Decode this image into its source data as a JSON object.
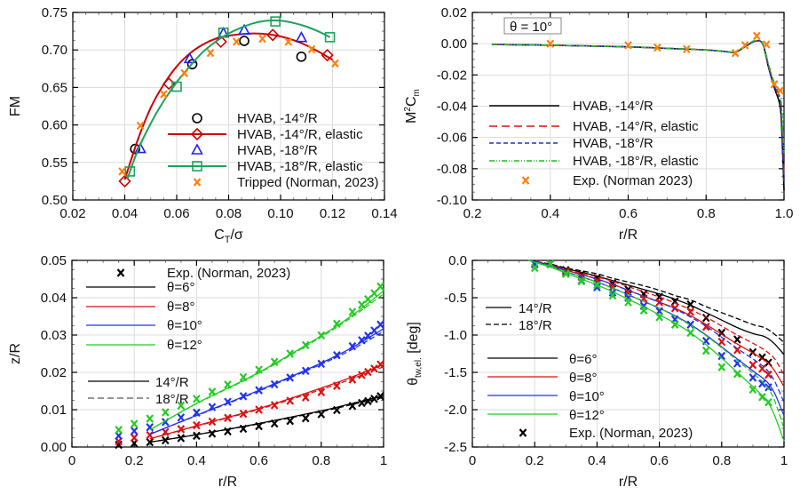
{
  "chart_data": [
    {
      "id": "fm",
      "type": "scatter",
      "xlabel": "C_T/σ",
      "ylabel": "FM",
      "xlim": [
        0.02,
        0.14
      ],
      "ylim": [
        0.5,
        0.75
      ],
      "xticks": [
        "0.02",
        "0.04",
        "0.06",
        "0.08",
        "0.10",
        "0.12",
        "0.14"
      ],
      "xtick_values": [
        0.02,
        0.04,
        0.06,
        0.08,
        0.1,
        0.12,
        0.14
      ],
      "yticks": [
        "0.50",
        "0.55",
        "0.60",
        "0.65",
        "0.70",
        "0.75"
      ],
      "ytick_values": [
        0.5,
        0.55,
        0.6,
        0.65,
        0.7,
        0.75
      ],
      "grid": true,
      "legend_position": "lower-right",
      "series": [
        {
          "name": "HVAB, -14°/R",
          "marker": "circle",
          "color": "#000000",
          "line": false,
          "x": [
            0.044,
            0.066,
            0.086,
            0.108
          ],
          "y": [
            0.568,
            0.681,
            0.712,
            0.691
          ]
        },
        {
          "name": "HVAB, -14°/R, elastic",
          "marker": "diamond",
          "color": "#cc0000",
          "line": true,
          "x": [
            0.04,
            0.057,
            0.077,
            0.097,
            0.118
          ],
          "y": [
            0.525,
            0.655,
            0.711,
            0.72,
            0.693
          ],
          "fit_x": [
            0.04,
            0.045,
            0.05,
            0.055,
            0.06,
            0.065,
            0.07,
            0.075,
            0.08,
            0.085,
            0.09,
            0.095,
            0.1,
            0.105,
            0.11,
            0.115,
            0.12
          ],
          "fit_y": [
            0.527,
            0.58,
            0.623,
            0.654,
            0.678,
            0.695,
            0.707,
            0.715,
            0.719,
            0.721,
            0.722,
            0.721,
            0.718,
            0.713,
            0.706,
            0.697,
            0.687
          ]
        },
        {
          "name": "HVAB, -18°/R",
          "marker": "triangle",
          "color": "#1f1fff",
          "line": false,
          "x": [
            0.046,
            0.065,
            0.078,
            0.086,
            0.108
          ],
          "y": [
            0.568,
            0.688,
            0.722,
            0.726,
            0.716
          ]
        },
        {
          "name": "HVAB, -18°/R, elastic",
          "marker": "square",
          "color": "#1aa35a",
          "line": true,
          "x": [
            0.042,
            0.06,
            0.078,
            0.098,
            0.119
          ],
          "y": [
            0.538,
            0.651,
            0.723,
            0.738,
            0.717
          ],
          "fit_x": [
            0.041,
            0.045,
            0.05,
            0.055,
            0.06,
            0.065,
            0.07,
            0.075,
            0.08,
            0.085,
            0.09,
            0.095,
            0.1,
            0.105,
            0.11,
            0.115,
            0.119
          ],
          "fit_y": [
            0.528,
            0.566,
            0.602,
            0.632,
            0.657,
            0.678,
            0.697,
            0.711,
            0.722,
            0.73,
            0.736,
            0.739,
            0.739,
            0.736,
            0.731,
            0.724,
            0.717
          ]
        },
        {
          "name": "Tripped (Norman, 2023)",
          "marker": "x",
          "color": "#ff7f0e",
          "line": false,
          "x": [
            0.039,
            0.046,
            0.055,
            0.063,
            0.073,
            0.083,
            0.093,
            0.103,
            0.112,
            0.121
          ],
          "y": [
            0.538,
            0.599,
            0.641,
            0.669,
            0.696,
            0.711,
            0.715,
            0.711,
            0.701,
            0.682
          ]
        }
      ]
    },
    {
      "id": "cm",
      "type": "line",
      "xlabel": "r/R",
      "ylabel": "M²C_m",
      "xlim": [
        0.2,
        1.0
      ],
      "ylim": [
        -0.1,
        0.02
      ],
      "xticks": [
        "0.2",
        "0.4",
        "0.6",
        "0.8",
        "1.0"
      ],
      "xtick_values": [
        0.2,
        0.4,
        0.6,
        0.8,
        1.0
      ],
      "yticks": [
        "-0.10",
        "-0.08",
        "-0.06",
        "-0.04",
        "-0.02",
        "0.00",
        "0.02"
      ],
      "ytick_values": [
        -0.1,
        -0.08,
        -0.06,
        -0.04,
        -0.02,
        0.0,
        0.02
      ],
      "grid": true,
      "annotation": "θ = 10°",
      "legend_position": "lower-center",
      "series": [
        {
          "name": "HVAB, -14°/R",
          "color": "#000000",
          "dash": "solid",
          "x": [
            0.25,
            0.4,
            0.6,
            0.7,
            0.8,
            0.85,
            0.875,
            0.9,
            0.925,
            0.945,
            0.96,
            0.975,
            0.99,
            0.995,
            1.0
          ],
          "y": [
            -0.0005,
            -0.001,
            -0.002,
            -0.003,
            -0.004,
            -0.005,
            -0.0055,
            -0.002,
            0.0015,
            0.0,
            -0.015,
            -0.028,
            -0.04,
            -0.06,
            -0.094
          ]
        },
        {
          "name": "HVAB, -14°/R, elastic",
          "color": "#dd1111",
          "dash": "long-dash",
          "x": [
            0.25,
            0.4,
            0.6,
            0.7,
            0.8,
            0.85,
            0.875,
            0.9,
            0.925,
            0.945,
            0.96,
            0.975,
            0.99,
            0.995,
            1.0
          ],
          "y": [
            -0.0005,
            -0.001,
            -0.002,
            -0.003,
            -0.004,
            -0.005,
            -0.0055,
            -0.002,
            0.0015,
            0.0,
            -0.014,
            -0.027,
            -0.036,
            -0.055,
            -0.085
          ]
        },
        {
          "name": "HVAB, -18°/R",
          "color": "#2233cc",
          "dash": "short-dash",
          "x": [
            0.25,
            0.4,
            0.6,
            0.7,
            0.8,
            0.85,
            0.875,
            0.9,
            0.925,
            0.945,
            0.96,
            0.975,
            0.99,
            0.995,
            1.0
          ],
          "y": [
            -0.0005,
            -0.001,
            -0.002,
            -0.003,
            -0.004,
            -0.005,
            -0.0055,
            -0.002,
            0.0015,
            0.0,
            -0.014,
            -0.027,
            -0.036,
            -0.055,
            -0.088
          ]
        },
        {
          "name": "HVAB, -18°/R, elastic",
          "color": "#22bb22",
          "dash": "dash-dot-dot",
          "x": [
            0.25,
            0.4,
            0.6,
            0.7,
            0.8,
            0.85,
            0.875,
            0.9,
            0.925,
            0.945,
            0.96,
            0.975,
            0.99,
            0.995,
            1.0
          ],
          "y": [
            -0.0005,
            -0.001,
            -0.002,
            -0.003,
            -0.004,
            -0.005,
            -0.005,
            -0.0015,
            0.002,
            0.0005,
            -0.013,
            -0.025,
            -0.034,
            -0.045,
            -0.07
          ]
        },
        {
          "name": "Exp. (Norman 2023)",
          "color": "#ff7f0e",
          "marker": "x",
          "x": [
            0.4,
            0.6,
            0.675,
            0.75,
            0.875,
            0.9,
            0.93,
            0.955,
            0.975,
            0.99
          ],
          "y": [
            0.0,
            -0.001,
            -0.0025,
            -0.0035,
            -0.006,
            -0.001,
            0.005,
            -0.0005,
            -0.026,
            -0.03
          ]
        }
      ]
    },
    {
      "id": "z",
      "type": "line",
      "xlabel": "r/R",
      "ylabel": "z/R",
      "xlim": [
        0,
        1
      ],
      "ylim": [
        0.0,
        0.05
      ],
      "xticks": [
        "0",
        "0.2",
        "0.4",
        "0.6",
        "0.8",
        "1"
      ],
      "xtick_values": [
        0,
        0.2,
        0.4,
        0.6,
        0.8,
        1
      ],
      "yticks": [
        "0.00",
        "0.01",
        "0.02",
        "0.03",
        "0.04",
        "0.05"
      ],
      "ytick_values": [
        0,
        0.01,
        0.02,
        0.03,
        0.04,
        0.05
      ],
      "grid": true,
      "legend_entries": [
        "Exp. (Norman, 2023)",
        "θ=6°",
        "θ=8°",
        "θ=10°",
        "θ=12°",
        "14°/R",
        "18°/R"
      ],
      "exp_x": [
        0.15,
        0.2,
        0.25,
        0.3,
        0.35,
        0.4,
        0.45,
        0.5,
        0.55,
        0.6,
        0.65,
        0.7,
        0.75,
        0.8,
        0.85,
        0.9,
        0.93,
        0.95,
        0.97,
        0.99
      ],
      "series": [
        {
          "name": "θ=6°",
          "color": "#000000",
          "x14": [
            0.25,
            0.4,
            0.6,
            0.8,
            0.9,
            1.0
          ],
          "y14": [
            0.0013,
            0.0033,
            0.0063,
            0.0097,
            0.0117,
            0.0137
          ],
          "y18": [
            0.0013,
            0.0033,
            0.0062,
            0.0095,
            0.0114,
            0.0133
          ],
          "exp_y": [
            0.0006,
            0.001,
            0.0013,
            0.0018,
            0.0024,
            0.003,
            0.0036,
            0.0042,
            0.0049,
            0.0056,
            0.0063,
            0.007,
            0.0077,
            0.0088,
            0.0099,
            0.011,
            0.0118,
            0.0123,
            0.0129,
            0.0136
          ]
        },
        {
          "name": "θ=8°",
          "color": "#dd1111",
          "x14": [
            0.25,
            0.4,
            0.6,
            0.8,
            0.9,
            1.0
          ],
          "y14": [
            0.0022,
            0.0057,
            0.0103,
            0.0158,
            0.0188,
            0.0221
          ],
          "y18": [
            0.0022,
            0.0056,
            0.0101,
            0.0154,
            0.0183,
            0.0215
          ],
          "exp_y": [
            0.0015,
            0.0025,
            0.0032,
            0.004,
            0.0048,
            0.0058,
            0.0068,
            0.0078,
            0.0089,
            0.01,
            0.0112,
            0.0124,
            0.0133,
            0.0147,
            0.0164,
            0.0181,
            0.0193,
            0.0201,
            0.021,
            0.0221
          ]
        },
        {
          "name": "θ=10°",
          "color": "#2233ee",
          "x14": [
            0.25,
            0.4,
            0.6,
            0.8,
            0.9,
            1.0
          ],
          "y14": [
            0.0034,
            0.0085,
            0.0152,
            0.0225,
            0.0267,
            0.0317
          ],
          "y18": [
            0.0034,
            0.0084,
            0.015,
            0.0222,
            0.0262,
            0.031
          ],
          "exp_y": [
            0.003,
            0.0043,
            0.0053,
            0.0067,
            0.0079,
            0.0092,
            0.0107,
            0.0121,
            0.0136,
            0.0152,
            0.0168,
            0.0186,
            0.0204,
            0.0223,
            0.0246,
            0.027,
            0.0286,
            0.0298,
            0.0312,
            0.0328
          ]
        },
        {
          "name": "θ=12°",
          "color": "#22cc22",
          "x14": [
            0.25,
            0.4,
            0.6,
            0.8,
            0.9,
            1.0
          ],
          "y14": [
            0.0046,
            0.0117,
            0.02,
            0.0298,
            0.0353,
            0.0418
          ],
          "y18": [
            0.0046,
            0.0116,
            0.0198,
            0.0295,
            0.0349,
            0.041
          ],
          "exp_y": [
            0.0046,
            0.0062,
            0.0076,
            0.0093,
            0.0111,
            0.0129,
            0.0148,
            0.0167,
            0.0187,
            0.0207,
            0.0228,
            0.025,
            0.0273,
            0.0299,
            0.033,
            0.0362,
            0.0381,
            0.0396,
            0.0412,
            0.043
          ]
        }
      ]
    },
    {
      "id": "theta",
      "type": "line",
      "xlabel": "r/R",
      "ylabel": "θ_tw,el. [deg]",
      "xlim": [
        0,
        1
      ],
      "ylim": [
        -2.5,
        0.0
      ],
      "xticks": [
        "0",
        "0.2",
        "0.4",
        "0.6",
        "0.8",
        "1"
      ],
      "xtick_values": [
        0,
        0.2,
        0.4,
        0.6,
        0.8,
        1
      ],
      "yticks": [
        "-2.5",
        "-2.0",
        "-1.5",
        "-1.0",
        "-0.5",
        "0.0"
      ],
      "ytick_values": [
        -2.5,
        -2.0,
        -1.5,
        -1.0,
        -0.5,
        0.0
      ],
      "grid": true,
      "legend_entries": [
        "14°/R",
        "18°/R",
        "θ=6°",
        "θ=8°",
        "θ=10°",
        "θ=12°",
        "Exp. (Norman, 2023)"
      ],
      "exp_x": [
        0.2,
        0.25,
        0.3,
        0.35,
        0.4,
        0.45,
        0.5,
        0.55,
        0.6,
        0.65,
        0.7,
        0.75,
        0.8,
        0.85,
        0.9,
        0.93,
        0.95
      ],
      "line_x": [
        0.18,
        0.25,
        0.3,
        0.35,
        0.4,
        0.45,
        0.5,
        0.55,
        0.6,
        0.65,
        0.7,
        0.75,
        0.8,
        0.85,
        0.9,
        0.93,
        0.95,
        0.97,
        1.0
      ],
      "series": [
        {
          "name": "θ=6°",
          "color": "#000000",
          "y14": [
            0,
            -0.06,
            -0.11,
            -0.16,
            -0.21,
            -0.27,
            -0.33,
            -0.39,
            -0.45,
            -0.52,
            -0.6,
            -0.7,
            -0.8,
            -0.9,
            -0.98,
            -1.01,
            -1.05,
            -1.12,
            -1.26
          ],
          "y18": [
            0,
            -0.05,
            -0.1,
            -0.14,
            -0.18,
            -0.24,
            -0.29,
            -0.34,
            -0.4,
            -0.47,
            -0.53,
            -0.62,
            -0.7,
            -0.78,
            -0.86,
            -0.89,
            -0.93,
            -0.99,
            -1.1
          ],
          "exp_y": [
            -0.05,
            -0.05,
            -0.13,
            -0.19,
            -0.24,
            -0.31,
            -0.39,
            -0.45,
            -0.49,
            -0.55,
            -0.59,
            -0.77,
            -0.97,
            -1.06,
            -1.23,
            -1.3,
            -1.37
          ]
        },
        {
          "name": "θ=8°",
          "color": "#dd1111",
          "y14": [
            0,
            -0.07,
            -0.13,
            -0.19,
            -0.25,
            -0.32,
            -0.4,
            -0.48,
            -0.56,
            -0.64,
            -0.74,
            -0.86,
            -0.99,
            -1.12,
            -1.24,
            -1.32,
            -1.38,
            -1.48,
            -1.69
          ],
          "y18": [
            0,
            -0.06,
            -0.12,
            -0.17,
            -0.22,
            -0.28,
            -0.35,
            -0.42,
            -0.49,
            -0.57,
            -0.66,
            -0.76,
            -0.88,
            -1.0,
            -1.11,
            -1.18,
            -1.24,
            -1.32,
            -1.53
          ],
          "exp_y": [
            -0.05,
            -0.05,
            -0.15,
            -0.22,
            -0.28,
            -0.36,
            -0.44,
            -0.51,
            -0.56,
            -0.64,
            -0.69,
            -0.89,
            -1.09,
            -1.2,
            -1.4,
            -1.45,
            -1.53
          ]
        },
        {
          "name": "θ=10°",
          "color": "#2233ee",
          "y14": [
            0,
            -0.08,
            -0.15,
            -0.22,
            -0.29,
            -0.37,
            -0.46,
            -0.55,
            -0.64,
            -0.74,
            -0.86,
            -1.0,
            -1.16,
            -1.32,
            -1.48,
            -1.57,
            -1.65,
            -1.78,
            -2.08
          ],
          "y18": [
            0,
            -0.07,
            -0.13,
            -0.19,
            -0.25,
            -0.32,
            -0.4,
            -0.48,
            -0.56,
            -0.65,
            -0.76,
            -0.88,
            -1.03,
            -1.18,
            -1.32,
            -1.41,
            -1.49,
            -1.62,
            -1.9
          ],
          "exp_y": [
            -0.05,
            -0.05,
            -0.17,
            -0.27,
            -0.36,
            -0.43,
            -0.5,
            -0.61,
            -0.68,
            -0.79,
            -0.86,
            -1.08,
            -1.28,
            -1.38,
            -1.57,
            -1.65,
            -1.7
          ]
        },
        {
          "name": "θ=12°",
          "color": "#22cc22",
          "y14": [
            0,
            -0.09,
            -0.17,
            -0.25,
            -0.33,
            -0.42,
            -0.52,
            -0.62,
            -0.73,
            -0.84,
            -0.97,
            -1.13,
            -1.31,
            -1.5,
            -1.69,
            -1.81,
            -1.91,
            -2.08,
            -2.42
          ],
          "y18": [
            0,
            -0.08,
            -0.15,
            -0.22,
            -0.29,
            -0.37,
            -0.46,
            -0.55,
            -0.64,
            -0.75,
            -0.87,
            -1.01,
            -1.17,
            -1.34,
            -1.51,
            -1.62,
            -1.72,
            -1.88,
            -2.25
          ],
          "exp_y": [
            -0.1,
            -0.05,
            -0.18,
            -0.28,
            -0.33,
            -0.47,
            -0.56,
            -0.67,
            -0.76,
            -0.86,
            -0.97,
            -1.21,
            -1.43,
            -1.52,
            -1.73,
            -1.83,
            -1.9
          ]
        }
      ]
    }
  ]
}
